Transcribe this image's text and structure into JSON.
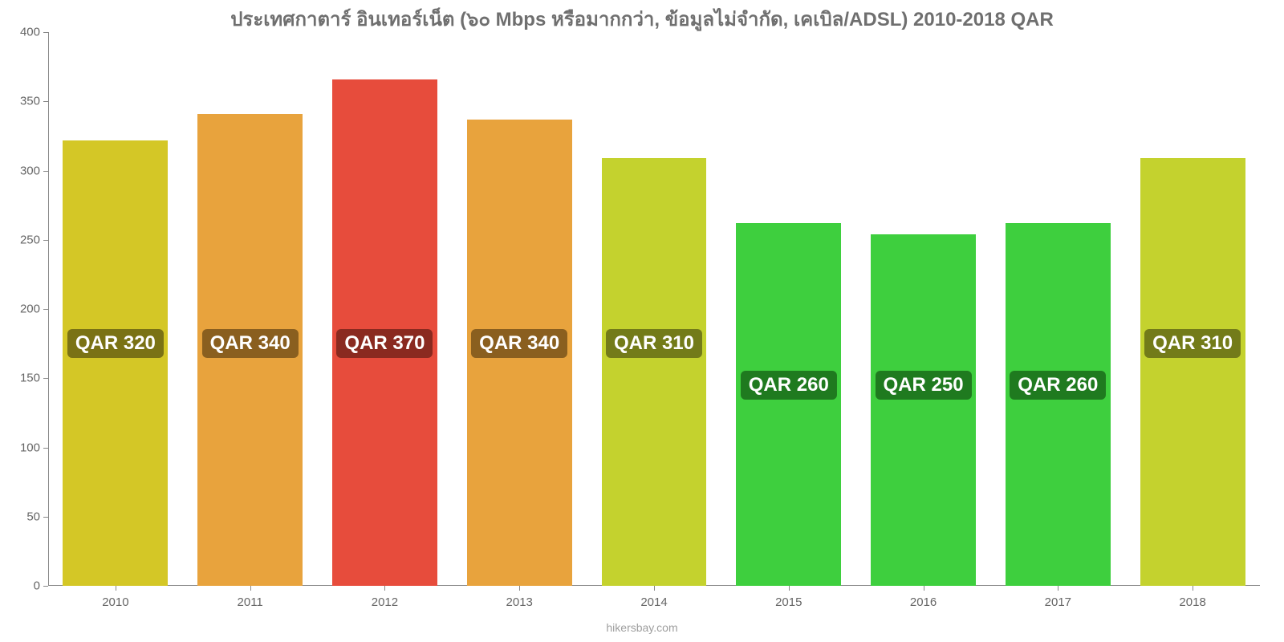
{
  "chart": {
    "type": "bar",
    "title": "ประเทศกาตาร์ อินเทอร์เน็ต (๖๐ Mbps หรือมากกว่า, ข้อมูลไม่จำกัด, เคเบิล/ADSL) 2010-2018 QAR",
    "title_fontsize": 24,
    "title_color": "#6f6f6f",
    "background_color": "#ffffff",
    "axis_color": "#888888",
    "tick_label_color": "#666666",
    "tick_label_fontsize": 15,
    "ylim": [
      0,
      400
    ],
    "ytick_step": 50,
    "yticks": [
      0,
      50,
      100,
      150,
      200,
      250,
      300,
      350,
      400
    ],
    "categories": [
      "2010",
      "2011",
      "2012",
      "2013",
      "2014",
      "2015",
      "2016",
      "2017",
      "2018"
    ],
    "values": [
      322,
      341,
      366,
      337,
      309,
      262,
      254,
      262,
      309
    ],
    "bar_labels": [
      "QAR 320",
      "QAR 340",
      "QAR 370",
      "QAR 340",
      "QAR 310",
      "QAR 260",
      "QAR 250",
      "QAR 260",
      "QAR 310"
    ],
    "bar_colors": [
      "#d4c726",
      "#e8a33d",
      "#e74c3c",
      "#e8a33d",
      "#c4d22e",
      "#3ecf3e",
      "#3ecf3e",
      "#3ecf3e",
      "#c4d22e"
    ],
    "badge_bg_colors": [
      "#7a7215",
      "#8a5f1f",
      "#8a2a20",
      "#8a5f1f",
      "#737b19",
      "#1f7a1f",
      "#1f7a1f",
      "#1f7a1f",
      "#737b19"
    ],
    "badge_text_color": "#ffffff",
    "badge_fontsize": 24,
    "badge_y_value": 175,
    "badge_y_value_low": 145,
    "badge_low_threshold": 300,
    "bar_width_ratio": 0.78,
    "footer": "hikersbay.com",
    "footer_color": "#9e9e9e",
    "footer_fontsize": 14
  }
}
